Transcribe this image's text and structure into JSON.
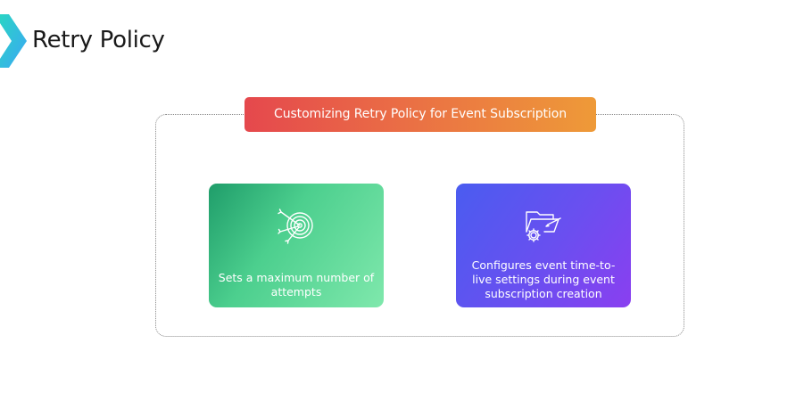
{
  "header": {
    "logo": "chevron-logo-icon",
    "title": "Retry Policy"
  },
  "main": {
    "banner": "Customizing Retry Policy for Event Subscription",
    "cards": [
      {
        "icon": "target-with-arrows-icon",
        "text": "Sets a maximum number of attempts"
      },
      {
        "icon": "folder-settings-icon",
        "text": "Configures event time-to-live settings during event subscription creation"
      }
    ]
  },
  "colors": {
    "banner_start": "#e5484d",
    "banner_end": "#ee9a38",
    "card_green_start": "#1f9d6a",
    "card_green_end": "#7fe8ac",
    "card_purple_start": "#4a5cf0",
    "card_purple_end": "#8a3ff0",
    "logo_start": "#2ad4c4",
    "logo_end": "#3ba7f5"
  }
}
